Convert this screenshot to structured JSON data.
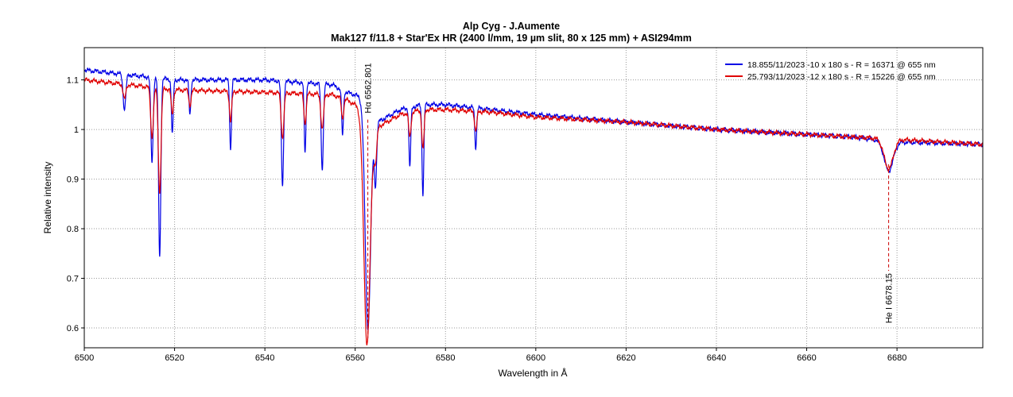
{
  "chart_data": {
    "type": "line",
    "title": "Alp Cyg - J.Aumente",
    "subtitle": "Mak127 f/11.8 + Star'Ex HR (2400 l/mm, 19 µm slit, 80 x 125 mm) + ASI294mm",
    "xlabel": "Wavelength in Å",
    "ylabel": "Relative intensity",
    "xlim": [
      6500,
      6699
    ],
    "ylim": [
      0.56,
      1.165
    ],
    "xticks": [
      6500,
      6520,
      6540,
      6560,
      6580,
      6600,
      6620,
      6640,
      6660,
      6680
    ],
    "yticks": [
      0.6,
      0.7,
      0.8,
      0.9,
      1,
      1.1
    ],
    "grid": true,
    "legend_position": "top-right",
    "series": [
      {
        "name": "18.855/11/2023  -10 x 180 s - R = 16371 @ 655 nm",
        "color": "#0000e6",
        "continuum": [
          [
            6500,
            1.12
          ],
          [
            6520,
            1.1
          ],
          [
            6540,
            1.1
          ],
          [
            6555,
            1.09
          ],
          [
            6558,
            1.075
          ],
          [
            6560,
            1.07
          ],
          [
            6562,
            1.06
          ],
          [
            6564,
            1.01
          ],
          [
            6570,
            1.04
          ],
          [
            6575,
            1.05
          ],
          [
            6580,
            1.05
          ],
          [
            6590,
            1.04
          ],
          [
            6600,
            1.03
          ],
          [
            6620,
            1.015
          ],
          [
            6640,
            1.0
          ],
          [
            6660,
            0.99
          ],
          [
            6670,
            0.985
          ],
          [
            6680,
            0.975
          ],
          [
            6699,
            0.97
          ]
        ],
        "lines": [
          [
            6508.9,
            0.07,
            0.3
          ],
          [
            6515.0,
            0.17,
            0.25
          ],
          [
            6516.7,
            0.36,
            0.25
          ],
          [
            6519.5,
            0.11,
            0.2
          ],
          [
            6523.4,
            0.07,
            0.2
          ],
          [
            6532.4,
            0.14,
            0.2
          ],
          [
            6543.9,
            0.21,
            0.25
          ],
          [
            6548.9,
            0.14,
            0.2
          ],
          [
            6552.7,
            0.17,
            0.25
          ],
          [
            6557.2,
            0.09,
            0.2
          ],
          [
            6562.8,
            0.44,
            0.6
          ],
          [
            6564.5,
            0.12,
            0.25
          ],
          [
            6572.1,
            0.12,
            0.2
          ],
          [
            6575.0,
            0.18,
            0.2
          ],
          [
            6586.7,
            0.08,
            0.2
          ],
          [
            6678.15,
            0.06,
            1.0
          ]
        ]
      },
      {
        "name": "25.793/11/2023  -12 x 180 s - R = 15226 @ 655 nm",
        "color": "#e00000",
        "continuum": [
          [
            6500,
            1.1
          ],
          [
            6520,
            1.08
          ],
          [
            6540,
            1.075
          ],
          [
            6555,
            1.07
          ],
          [
            6558,
            1.06
          ],
          [
            6560,
            1.05
          ],
          [
            6562,
            1.04
          ],
          [
            6564,
            1.0
          ],
          [
            6570,
            1.03
          ],
          [
            6575,
            1.04
          ],
          [
            6580,
            1.04
          ],
          [
            6590,
            1.035
          ],
          [
            6600,
            1.025
          ],
          [
            6620,
            1.015
          ],
          [
            6640,
            1.0
          ],
          [
            6660,
            0.99
          ],
          [
            6670,
            0.985
          ],
          [
            6680,
            0.98
          ],
          [
            6699,
            0.97
          ]
        ],
        "lines": [
          [
            6508.9,
            0.03,
            0.3
          ],
          [
            6515.0,
            0.1,
            0.3
          ],
          [
            6516.7,
            0.21,
            0.3
          ],
          [
            6519.5,
            0.05,
            0.25
          ],
          [
            6523.4,
            0.03,
            0.25
          ],
          [
            6532.4,
            0.06,
            0.25
          ],
          [
            6543.9,
            0.09,
            0.3
          ],
          [
            6548.9,
            0.06,
            0.25
          ],
          [
            6552.7,
            0.07,
            0.3
          ],
          [
            6557.2,
            0.04,
            0.25
          ],
          [
            6562.6,
            0.46,
            0.7
          ],
          [
            6564.5,
            0.06,
            0.3
          ],
          [
            6572.1,
            0.05,
            0.25
          ],
          [
            6575.0,
            0.08,
            0.25
          ],
          [
            6586.7,
            0.04,
            0.25
          ],
          [
            6678.15,
            0.06,
            1.0
          ]
        ]
      }
    ],
    "annotations": [
      {
        "label": "Hα 6562.801",
        "x": 6562.8,
        "y_line_start": 1.02,
        "label_side": "above"
      },
      {
        "label": "He I 6678.15",
        "x": 6678.15,
        "y_line_start": 0.93,
        "label_side": "below"
      }
    ]
  }
}
